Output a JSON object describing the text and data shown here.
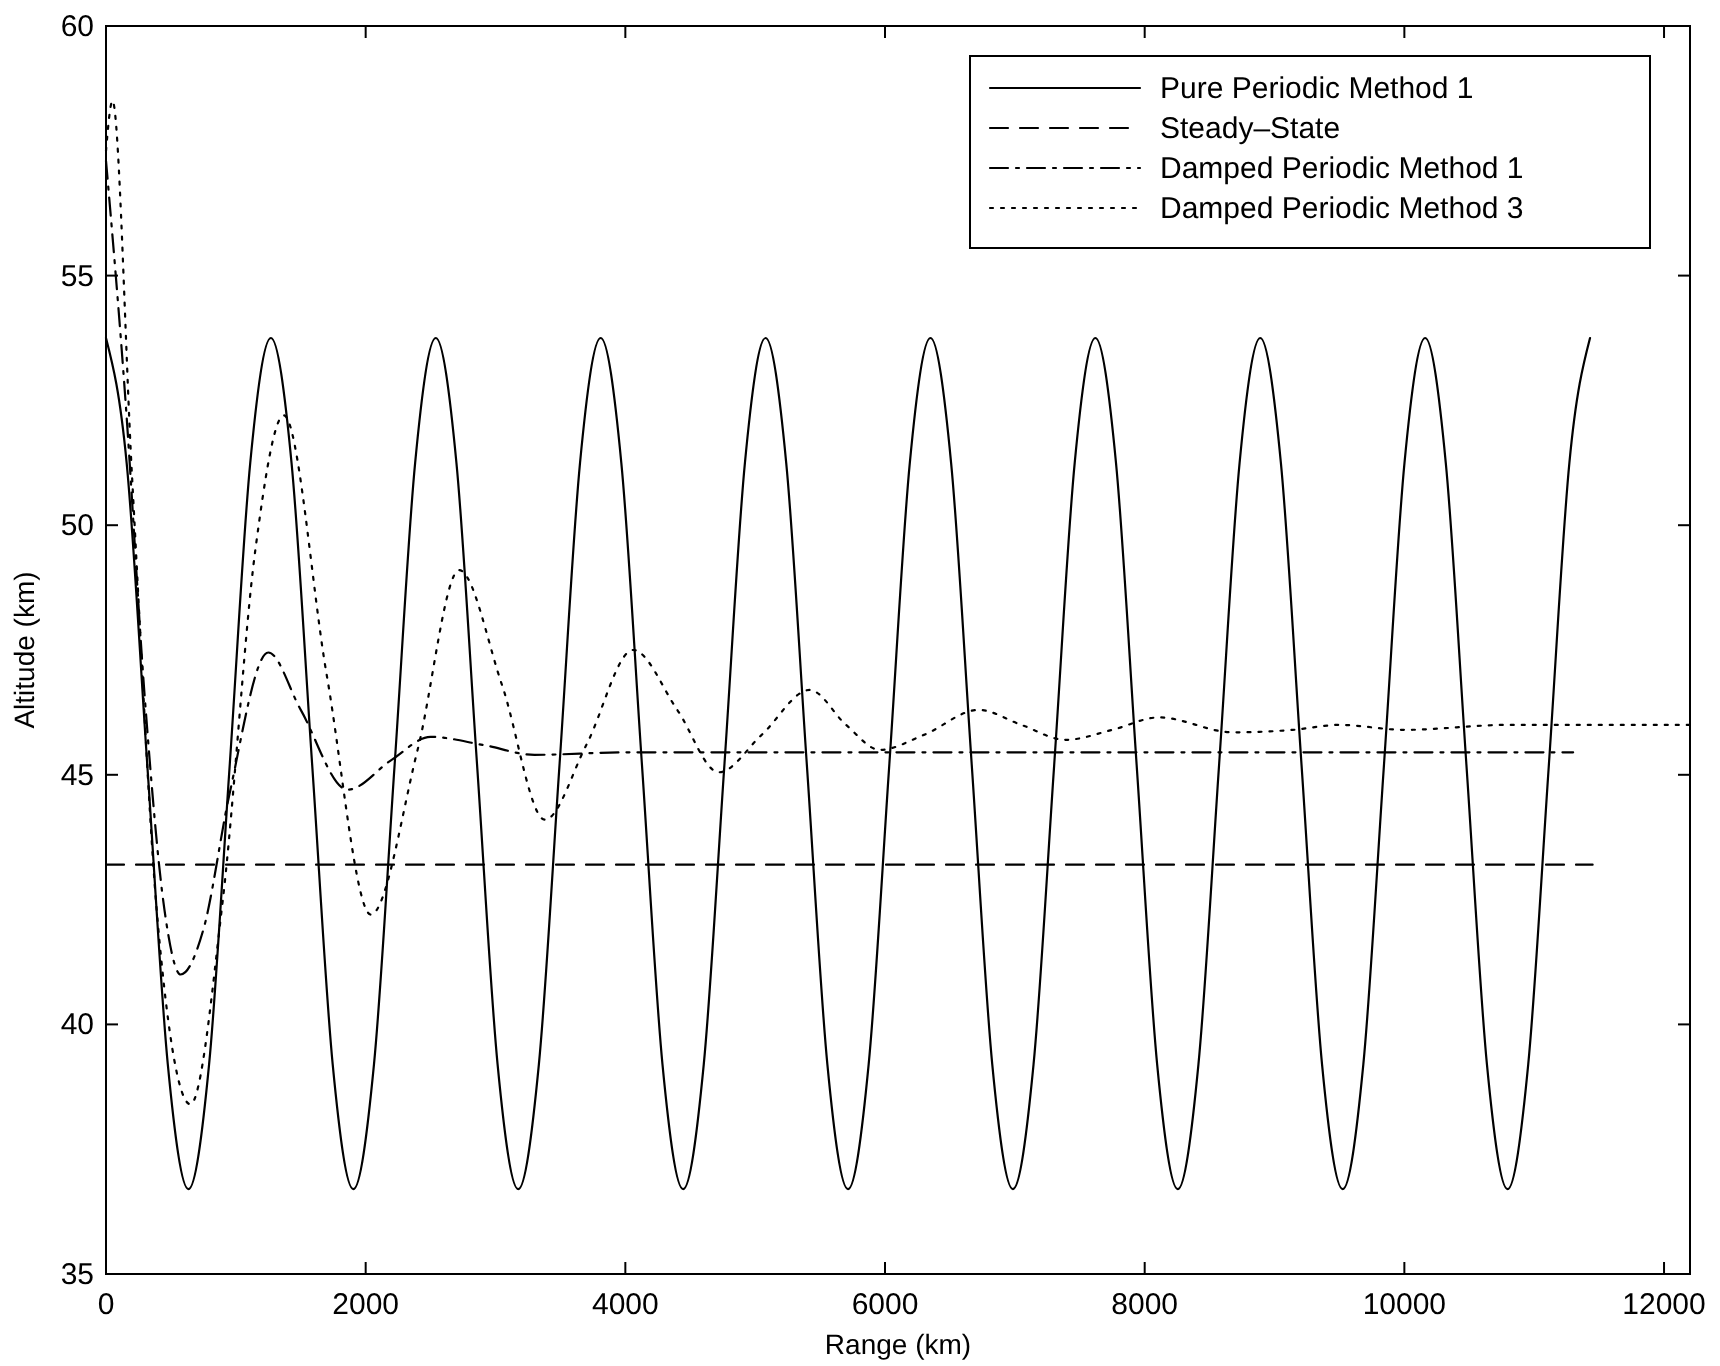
{
  "chart_data": {
    "type": "line",
    "xlabel": "Range (km)",
    "ylabel": "Altitude (km)",
    "xlim": [
      0,
      12200
    ],
    "ylim": [
      35,
      60
    ],
    "xticks": [
      0,
      2000,
      4000,
      6000,
      8000,
      10000,
      12000
    ],
    "yticks": [
      35,
      40,
      45,
      50,
      55,
      60
    ],
    "grid": false,
    "legend": "top right",
    "series": [
      {
        "name": "Pure Periodic Method 1",
        "color": "#000000",
        "line_style": "solid",
        "x": [
          0,
          159,
          318,
          476,
          635,
          794,
          953,
          1111,
          1270,
          1429,
          1588,
          1746,
          1905,
          2064,
          2223,
          2381,
          2540,
          2699,
          2858,
          3016,
          3175,
          3334,
          3493,
          3651,
          3810,
          3969,
          4128,
          4286,
          4445,
          4604,
          4763,
          4921,
          5080,
          5239,
          5398,
          5556,
          5715,
          5874,
          6033,
          6191,
          6350,
          6509,
          6668,
          6826,
          6985,
          7144,
          7303,
          7461,
          7620,
          7779,
          7938,
          8096,
          8255,
          8414,
          8573,
          8731,
          8890,
          9049,
          9208,
          9366,
          9525,
          9684,
          9843,
          10001,
          10160,
          10319,
          10478,
          10636,
          10795,
          10954,
          11113,
          11271,
          11430
        ],
        "values": [
          53.75,
          51.25,
          45.2,
          39.2,
          36.7,
          39.2,
          45.2,
          51.25,
          53.75,
          51.25,
          45.2,
          39.2,
          36.7,
          39.2,
          45.2,
          51.25,
          53.75,
          51.25,
          45.2,
          39.2,
          36.7,
          39.2,
          45.2,
          51.25,
          53.75,
          51.25,
          45.2,
          39.2,
          36.7,
          39.2,
          45.2,
          51.25,
          53.75,
          51.25,
          45.2,
          39.2,
          36.7,
          39.2,
          45.2,
          51.25,
          53.75,
          51.25,
          45.2,
          39.2,
          36.7,
          39.2,
          45.2,
          51.25,
          53.75,
          51.25,
          45.2,
          39.2,
          36.7,
          39.2,
          45.2,
          51.25,
          53.75,
          51.25,
          45.2,
          39.2,
          36.7,
          39.2,
          45.2,
          51.25,
          53.75,
          51.25,
          45.2,
          39.2,
          36.7,
          39.2,
          45.2,
          51.25,
          53.75
        ]
      },
      {
        "name": "Steady–State",
        "color": "#000000",
        "line_style": "dashed",
        "x": [
          0,
          11450
        ],
        "values": [
          43.2,
          43.2
        ]
      },
      {
        "name": "Damped Periodic Method 1",
        "color": "#000000",
        "line_style": "dashdot",
        "x": [
          0,
          150,
          300,
          450,
          575,
          750,
          950,
          1250,
          1500,
          1860,
          2200,
          2500,
          2900,
          3300,
          4000,
          6000,
          8000,
          10000,
          11300
        ],
        "values": [
          57.3,
          52.5,
          46.5,
          42.3,
          41.0,
          41.9,
          44.6,
          47.45,
          46.3,
          44.7,
          45.3,
          45.76,
          45.6,
          45.4,
          45.45,
          45.45,
          45.45,
          45.45,
          45.45
        ]
      },
      {
        "name": "Damped Periodic Method 3",
        "color": "#000000",
        "line_style": "dotted",
        "x": [
          0,
          50,
          200,
          400,
          650,
          900,
          1150,
          1370,
          1700,
          2040,
          2400,
          2720,
          3050,
          3380,
          3700,
          4060,
          4400,
          4720,
          5050,
          5420,
          5700,
          5960,
          6300,
          6720,
          7050,
          7390,
          7750,
          8110,
          8680,
          9140,
          9500,
          10000,
          10800,
          12200
        ],
        "values": [
          57.5,
          58.5,
          51.0,
          42.0,
          38.4,
          42.5,
          49.5,
          52.2,
          47.0,
          42.2,
          45.5,
          49.1,
          46.8,
          44.1,
          45.6,
          47.5,
          46.3,
          45.05,
          45.8,
          46.7,
          46.0,
          45.5,
          45.8,
          46.3,
          46.0,
          45.7,
          45.9,
          46.15,
          45.85,
          45.9,
          46.0,
          45.9,
          46.0,
          46.0
        ]
      }
    ]
  }
}
